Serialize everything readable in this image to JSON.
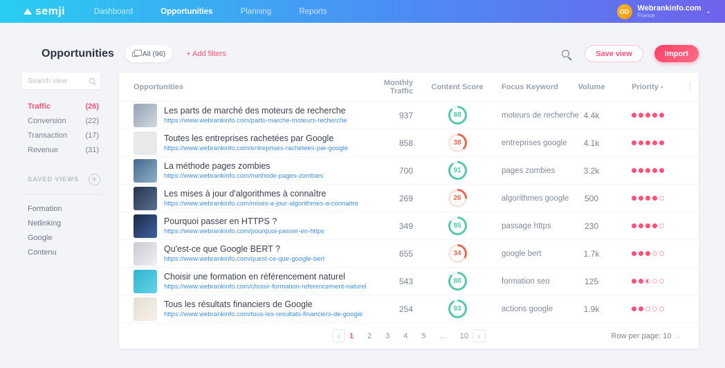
{
  "colors": {
    "accent": "#FF5277",
    "accent_light": "#FFABBC",
    "teal": "#54C7AE",
    "teal_light": "#E2F4EF",
    "red": "#F0644E",
    "red_light": "#FBE4DF",
    "link": "#3F8FE2"
  },
  "icons": {
    "sort_caret": "▾",
    "chevron_down": "⌄",
    "prev": "‹",
    "next": "›",
    "ellipsis_menu": "⋮",
    "plus": "+"
  },
  "navbar": {
    "brand": "semji",
    "items": [
      {
        "label": "Dashboard",
        "active": false
      },
      {
        "label": "Opportunities",
        "active": true
      },
      {
        "label": "Planning",
        "active": false
      },
      {
        "label": "Reports",
        "active": false
      }
    ],
    "account": {
      "initials": "OD",
      "name": "Webrankinfo.com",
      "region": "France"
    }
  },
  "header": {
    "title": "Opportunities",
    "view_pill": "All (96)",
    "add_filters": "+ Add filters",
    "save_view": "Save view",
    "import": "Import"
  },
  "sidebar": {
    "search_placeholder": "Search view",
    "views": [
      {
        "label": "Traffic",
        "count": "(26)",
        "active": true
      },
      {
        "label": "Conversion",
        "count": "(22)",
        "active": false
      },
      {
        "label": "Transaction",
        "count": "(17)",
        "active": false
      },
      {
        "label": "Revenue",
        "count": "(31)",
        "active": false
      }
    ],
    "saved_views_label": "SAVED VIEWS",
    "saved_views": [
      "Formation",
      "Netlinking",
      "Google",
      "Contenu"
    ]
  },
  "table": {
    "columns": [
      "Opportunities",
      "Monthly Traffic",
      "Content Score",
      "Focus Keyword",
      "Volume",
      "Priority"
    ],
    "rows": [
      {
        "title": "Les parts de marché des moteurs de recherche",
        "url": "https://www.webrankinfo.com/parts-marche-moteurs-recherche",
        "traffic": "937",
        "score": 88,
        "score_tone": "good",
        "keyword": "moteurs de recherche",
        "volume": "4.4k",
        "priority": 5,
        "thumb": [
          "#93a2b4",
          "#d3d9e0"
        ]
      },
      {
        "title": "Toutes les entreprises rachetées par Google",
        "url": "https://www.webrankinfo.com/entreprises-rachetees-par-google",
        "traffic": "858",
        "score": 38,
        "score_tone": "low",
        "keyword": "entreprises google",
        "volume": "4.1k",
        "priority": 5,
        "thumb": [
          "#e8e9eb",
          "#e8e9eb"
        ]
      },
      {
        "title": "La méthode pages zombies",
        "url": "https://www.webrankinfo.com/methode-pages-zombies",
        "traffic": "700",
        "score": 91,
        "score_tone": "good",
        "keyword": "pages zombies",
        "volume": "3.2k",
        "priority": 5,
        "thumb": [
          "#46688c",
          "#8fb0c8"
        ]
      },
      {
        "title": "Les mises à jour d'algorithmes à connaître",
        "url": "https://www.webrankinfo.com/mises-a-jour-algorithmes-a-connaitre",
        "traffic": "269",
        "score": 26,
        "score_tone": "low",
        "keyword": "algorithmes google",
        "volume": "500",
        "priority": 4,
        "thumb": [
          "#24354f",
          "#5a7190"
        ]
      },
      {
        "title": "Pourquoi passer en HTTPS ?",
        "url": "https://www.webrankinfo.com/pourquoi-passer-en-https",
        "traffic": "349",
        "score": 85,
        "score_tone": "good",
        "keyword": "passage https",
        "volume": "230",
        "priority": 4,
        "thumb": [
          "#1b2a48",
          "#3f63a0"
        ]
      },
      {
        "title": "Qu'est-ce que Google BERT ?",
        "url": "https://www.webrankinfo.com/quest-ce-que-google-bert",
        "traffic": "655",
        "score": 34,
        "score_tone": "low",
        "keyword": "google bert",
        "volume": "1.7k",
        "priority": 3,
        "thumb": [
          "#c9ccd2",
          "#eef0f2"
        ]
      },
      {
        "title": "Choisir une formation en référencement naturel",
        "url": "https://www.webrankinfo.com/choisir-formation-referencement-naturel",
        "traffic": "543",
        "score": 88,
        "score_tone": "good",
        "keyword": "formation seo",
        "volume": "125",
        "priority": 2.5,
        "thumb": [
          "#2fb4cf",
          "#62d3e6"
        ]
      },
      {
        "title": "Tous les résultats financiers de Google",
        "url": "https://www.webrankinfo.com/tous-les-resultats-financiers-de-google",
        "traffic": "254",
        "score": 93,
        "score_tone": "good",
        "keyword": "actions google",
        "volume": "1.9k",
        "priority": 2,
        "thumb": [
          "#e6ddd2",
          "#f6f1e9"
        ]
      }
    ]
  },
  "pagination": {
    "pages": [
      "1",
      "2",
      "3",
      "4",
      "5",
      "...",
      "10"
    ],
    "active_page": "1",
    "rows_per_page_label": "Row per page: 10"
  }
}
